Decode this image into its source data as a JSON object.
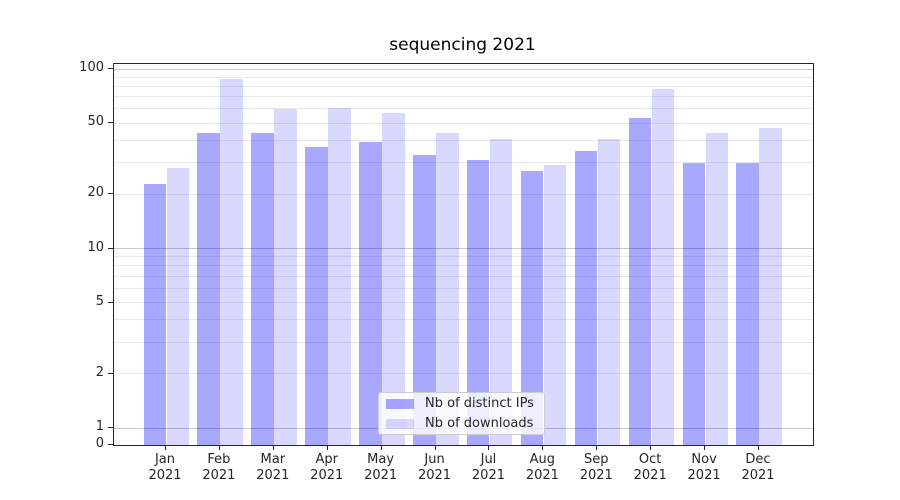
{
  "chart_data": {
    "type": "bar",
    "title": "sequencing 2021",
    "categories": [
      "Jan",
      "Feb",
      "Mar",
      "Apr",
      "May",
      "Jun",
      "Jul",
      "Aug",
      "Sep",
      "Oct",
      "Nov",
      "Dec"
    ],
    "category_year": "2021",
    "series": [
      {
        "name": "Nb of distinct IPs",
        "color": "rgba(0,0,255,0.34)",
        "values": [
          23,
          44,
          44,
          37,
          39,
          33,
          31,
          27,
          35,
          53,
          30,
          30
        ]
      },
      {
        "name": "Nb of downloads",
        "color": "rgba(0,0,255,0.15)",
        "values": [
          28,
          88,
          60,
          61,
          57,
          44,
          41,
          29,
          41,
          77,
          44,
          47
        ]
      }
    ],
    "xlabel": "",
    "ylabel": "",
    "yscale": "symlog",
    "yticks": [
      0,
      1,
      2,
      5,
      10,
      20,
      50,
      100
    ],
    "ylim": [
      0,
      107
    ],
    "grid": "both",
    "legend_position": "lower center"
  },
  "colors": {
    "grid_minor": "#e9e9e9",
    "grid_major": "#c9c9c9",
    "spine": "#262626",
    "text": "#262626",
    "background": "#ffffff",
    "legend_bg": "rgba(255,255,255,0.8)",
    "legend_border": "#cccccc"
  }
}
